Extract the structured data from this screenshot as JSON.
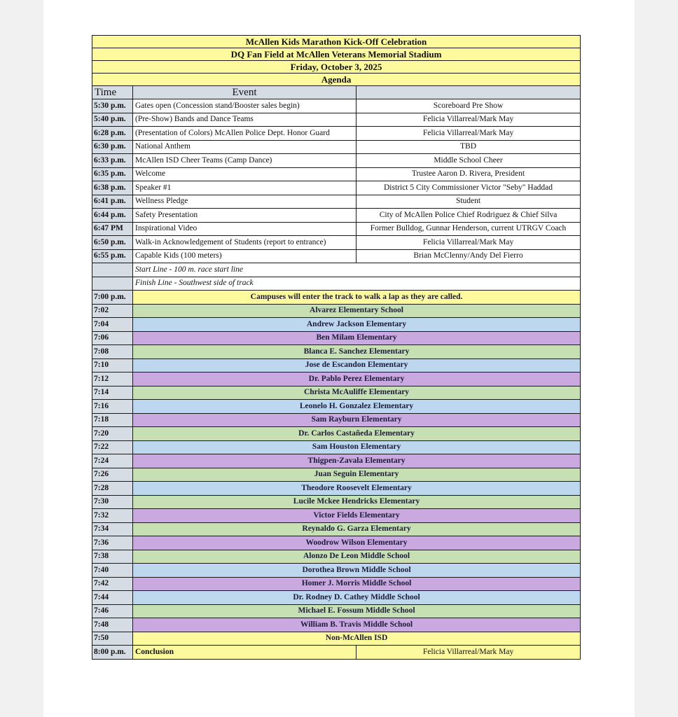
{
  "header": {
    "title": "McAllen Kids Marathon Kick-Off Celebration",
    "venue": "DQ Fan Field at McAllen Veterans Memorial Stadium",
    "date": "Friday, October 3, 2025",
    "subtitle": "Agenda",
    "col_time": "Time",
    "col_event": "Event"
  },
  "colors": {
    "yellow": "#fdfa9d",
    "green": "#c6dfb3",
    "blue": "#bdd7ee",
    "purple": "#c9a9e0",
    "time_col": "#d6dce4"
  },
  "program": [
    {
      "time": "5:30 p.m.",
      "event": "Gates open (Concession stand/Booster sales begin)",
      "who": "Scoreboard Pre Show"
    },
    {
      "time": "5:40 p.m.",
      "event": "(Pre-Show) Bands and Dance Teams",
      "who": "Felicia Villarreal/Mark May"
    },
    {
      "time": "6:28 p.m.",
      "event": "(Presentation of Colors) McAllen Police Dept. Honor Guard",
      "who": "Felicia Villarreal/Mark May"
    },
    {
      "time": "6:30 p.m.",
      "event": "National Anthem",
      "who": "TBD"
    },
    {
      "time": "6:33 p.m.",
      "event": "McAllen ISD Cheer Teams (Camp Dance)",
      "who": "Middle School Cheer"
    },
    {
      "time": "6:35 p.m.",
      "event": "Welcome",
      "who": "Trustee Aaron D. Rivera, President"
    },
    {
      "time": "6:38 p.m.",
      "event": "Speaker #1",
      "who": "District 5 City Commissioner Victor \"Seby\" Haddad"
    },
    {
      "time": "6:41 p.m.",
      "event": "Wellness Pledge",
      "who": "Student"
    },
    {
      "time": "6:44 p.m.",
      "event": "Safety Presentation",
      "who": "City of McAllen Police Chief Rodriguez & Chief Silva"
    },
    {
      "time": "6:47 PM",
      "event": "Inspirational Video",
      "who": "Former Bulldog, Gunnar Henderson, current UTRGV Coach"
    },
    {
      "time": "6:50 p.m.",
      "event": "Walk-in Acknowledgement of Students (report to entrance)",
      "who": "Felicia Villarreal/Mark May"
    },
    {
      "time": "6:55 p.m.",
      "event": "Capable Kids (100 meters)",
      "who": "Brian McClenny/Andy Del Fierro"
    }
  ],
  "notes": [
    "Start Line - 100 m. race start line",
    "Finish Line - Southwest side of track"
  ],
  "campus_intro": {
    "time": "7:00 p.m.",
    "text": "Campuses will enter the track to walk a lap as they are called."
  },
  "campuses": [
    {
      "time": "7:02",
      "name": "Alvarez Elementary School",
      "color": "green"
    },
    {
      "time": "7:04",
      "name": "Andrew Jackson Elementary",
      "color": "blue"
    },
    {
      "time": "7:06",
      "name": "Ben Milam Elementary",
      "color": "purple"
    },
    {
      "time": "7:08",
      "name": "Blanca E. Sanchez Elementary",
      "color": "green"
    },
    {
      "time": "7:10",
      "name": "Jose de Escandon Elementary",
      "color": "blue"
    },
    {
      "time": "7:12",
      "name": "Dr. Pablo Perez Elementary",
      "color": "purple"
    },
    {
      "time": "7:14",
      "name": "Christa McAuliffe Elementary",
      "color": "green"
    },
    {
      "time": "7:16",
      "name": "Leonelo H. Gonzalez Elementary",
      "color": "blue"
    },
    {
      "time": "7:18",
      "name": "Sam Rayburn Elementary",
      "color": "purple"
    },
    {
      "time": "7:20",
      "name": "Dr. Carlos Castañeda Elementary",
      "color": "green"
    },
    {
      "time": "7:22",
      "name": "Sam Houston Elementary",
      "color": "blue"
    },
    {
      "time": "7:24",
      "name": "Thigpen-Zavala Elementary",
      "color": "purple"
    },
    {
      "time": "7:26",
      "name": "Juan Seguin Elementary",
      "color": "green"
    },
    {
      "time": "7:28",
      "name": "Theodore Roosevelt Elementary",
      "color": "blue"
    },
    {
      "time": "7:30",
      "name": "Lucile Mckee Hendricks Elementary",
      "color": "green"
    },
    {
      "time": "7:32",
      "name": "Victor Fields Elementary",
      "color": "purple"
    },
    {
      "time": "7:34",
      "name": "Reynaldo G. Garza Elementary",
      "color": "green"
    },
    {
      "time": "7:36",
      "name": "Woodrow Wilson Elementary",
      "color": "purple"
    },
    {
      "time": "7:38",
      "name": "Alonzo De Leon Middle School",
      "color": "green"
    },
    {
      "time": "7:40",
      "name": "Dorothea Brown Middle School",
      "color": "blue"
    },
    {
      "time": "7:42",
      "name": "Homer J. Morris Middle School",
      "color": "purple"
    },
    {
      "time": "7:44",
      "name": "Dr. Rodney D. Cathey Middle School",
      "color": "blue"
    },
    {
      "time": "7:46",
      "name": "Michael E. Fossum Middle School",
      "color": "green"
    },
    {
      "time": "7:48",
      "name": "William B. Travis Middle School",
      "color": "purple"
    },
    {
      "time": "7:50",
      "name": "Non-McAllen ISD",
      "color": "yellow"
    }
  ],
  "conclusion": {
    "time": "8:00 p.m.",
    "event": "Conclusion",
    "who": "Felicia Villarreal/Mark May"
  }
}
